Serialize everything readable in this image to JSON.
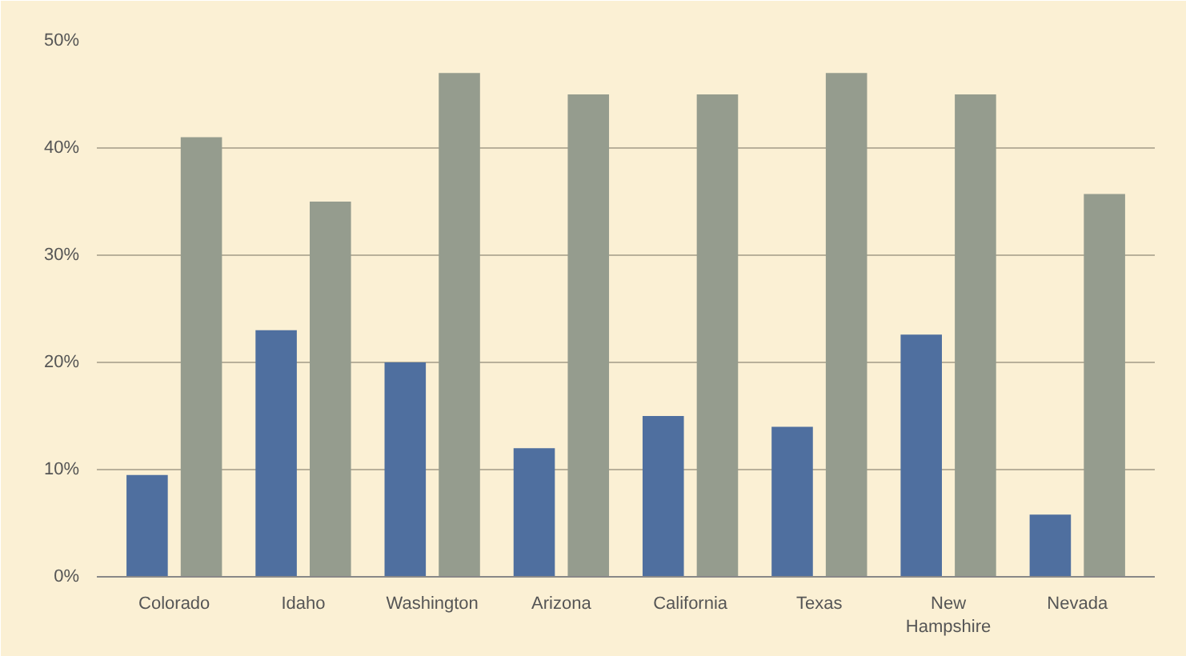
{
  "chart_data": {
    "type": "bar",
    "categories": [
      "Colorado",
      "Idaho",
      "Washington",
      "Arizona",
      "California",
      "Texas",
      "New\nHampshire",
      "Nevada"
    ],
    "series": [
      {
        "color": "#4f6f9f",
        "values": [
          9.5,
          23,
          20,
          12,
          15,
          14,
          22.6,
          5.8
        ]
      },
      {
        "color": "#959c8e",
        "values": [
          41,
          35,
          47,
          45,
          45,
          47,
          45,
          35.7
        ]
      }
    ],
    "ylim": [
      0,
      50
    ],
    "yticks": [
      {
        "value": 0,
        "label": "0%"
      },
      {
        "value": 10,
        "label": "10%"
      },
      {
        "value": 20,
        "label": "20%"
      },
      {
        "value": 30,
        "label": "30%"
      },
      {
        "value": 40,
        "label": "40%"
      },
      {
        "value": 50,
        "label": "50%"
      }
    ],
    "grid": "y"
  }
}
